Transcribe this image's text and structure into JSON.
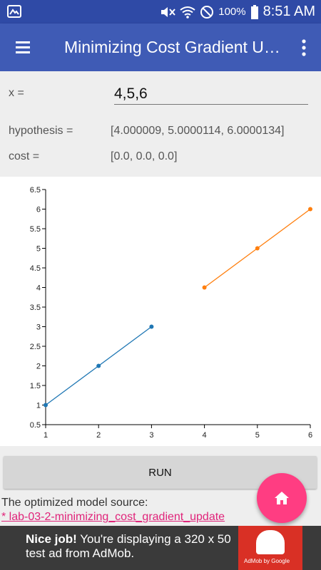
{
  "status_bar": {
    "battery": "100%",
    "time": "8:51 AM"
  },
  "app_bar": {
    "title": "Minimizing Cost Gradient Update"
  },
  "form": {
    "x_label": "x =",
    "x_value": "4,5,6",
    "hypothesis_label": "hypothesis =",
    "hypothesis_value": "[4.000009, 5.0000114, 6.0000134]",
    "cost_label": "cost =",
    "cost_value": "[0.0, 0.0, 0.0]"
  },
  "chart_data": {
    "type": "line",
    "series": [
      {
        "x": [
          1,
          2,
          3
        ],
        "y": [
          1,
          2,
          3
        ],
        "color": "#1f77b4"
      },
      {
        "x": [
          4,
          5,
          6
        ],
        "y": [
          4.000009,
          5.0000114,
          6.0000134
        ],
        "color": "#ff7f0e"
      }
    ],
    "xlim": [
      1,
      6
    ],
    "ylim": [
      0.5,
      6.5
    ],
    "xticks": [
      "1",
      "2",
      "3",
      "4",
      "5",
      "6"
    ],
    "yticks": [
      "0.5",
      "1",
      "1.5",
      "2",
      "2.5",
      "3",
      "3.5",
      "4",
      "4.5",
      "5",
      "5.5",
      "6",
      "6.5"
    ]
  },
  "run_button": {
    "label": "RUN"
  },
  "source": {
    "label": "The optimized model source:",
    "link": "* lab-03-2-minimizing_cost_gradient_update"
  },
  "ad": {
    "headline": "Nice job!",
    "body": " You're displaying a 320 x 50 test ad from AdMob.",
    "byline": "AdMob by Google"
  }
}
